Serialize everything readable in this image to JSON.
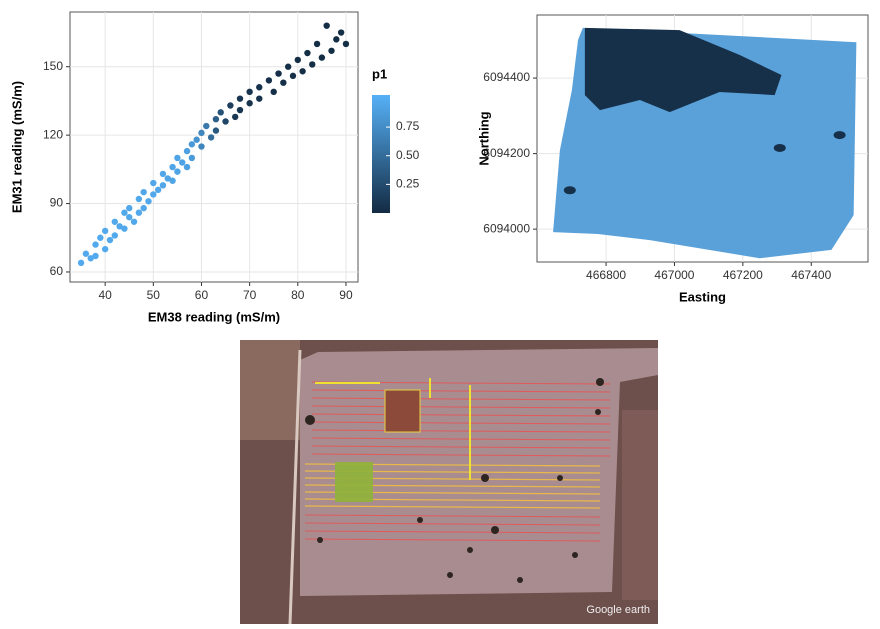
{
  "chart_data": [
    {
      "type": "scatter",
      "xlabel": "EM38 reading (mS/m)",
      "ylabel": "EM31 reading (mS/m)",
      "x": [
        35,
        36,
        37,
        38,
        38,
        39,
        40,
        40,
        41,
        42,
        42,
        43,
        44,
        44,
        45,
        45,
        46,
        47,
        47,
        48,
        48,
        49,
        50,
        50,
        51,
        52,
        52,
        53,
        54,
        54,
        55,
        55,
        56,
        57,
        57,
        58,
        58,
        59,
        60,
        60,
        61,
        62,
        63,
        63,
        64,
        65,
        66,
        67,
        68,
        68,
        70,
        70,
        72,
        72,
        74,
        75,
        76,
        77,
        78,
        79,
        80,
        81,
        82,
        83,
        84,
        85,
        86,
        87,
        88,
        89,
        90
      ],
      "y": [
        64,
        68,
        66,
        72,
        67,
        75,
        70,
        78,
        74,
        82,
        76,
        80,
        86,
        79,
        88,
        84,
        82,
        92,
        86,
        95,
        88,
        91,
        99,
        94,
        96,
        103,
        98,
        101,
        106,
        100,
        110,
        104,
        108,
        113,
        106,
        116,
        110,
        118,
        115,
        121,
        124,
        119,
        127,
        122,
        130,
        126,
        133,
        128,
        136,
        131,
        139,
        134,
        141,
        136,
        144,
        139,
        147,
        143,
        150,
        146,
        153,
        148,
        156,
        151,
        160,
        154,
        168,
        157,
        162,
        165,
        160
      ],
      "p1": [
        0.97,
        0.97,
        0.97,
        0.97,
        0.97,
        0.97,
        0.97,
        0.97,
        0.96,
        0.96,
        0.96,
        0.96,
        0.96,
        0.96,
        0.96,
        0.96,
        0.96,
        0.96,
        0.96,
        0.95,
        0.95,
        0.95,
        0.95,
        0.95,
        0.95,
        0.95,
        0.95,
        0.94,
        0.94,
        0.94,
        0.93,
        0.93,
        0.92,
        0.9,
        0.9,
        0.85,
        0.85,
        0.8,
        0.7,
        0.7,
        0.6,
        0.5,
        0.4,
        0.35,
        0.3,
        0.2,
        0.15,
        0.1,
        0.08,
        0.08,
        0.06,
        0.06,
        0.05,
        0.05,
        0.04,
        0.04,
        0.03,
        0.03,
        0.03,
        0.03,
        0.02,
        0.02,
        0.02,
        0.02,
        0.02,
        0.02,
        0.02,
        0.02,
        0.02,
        0.02,
        0.02
      ],
      "xlim": [
        32.7,
        92.5
      ],
      "ylim": [
        55.6,
        174
      ],
      "xticks": [
        40,
        50,
        60,
        70,
        80,
        90
      ],
      "yticks": [
        60,
        90,
        120,
        150
      ],
      "grid": true,
      "colorbar": {
        "title": "p1",
        "lim": [
          0,
          1.03
        ],
        "ticks": [
          0.25,
          {
            "value": 0.5,
            "label": "0.50"
          },
          0.75
        ],
        "colors": [
          "#132b43",
          "#56b1f7"
        ]
      }
    },
    {
      "type": "map",
      "xlabel": "Easting",
      "ylabel": "Northing",
      "xlim": [
        466598,
        467566
      ],
      "ylim": [
        6093913,
        6094567
      ],
      "xticks": [
        466800,
        467000,
        467200,
        467400
      ],
      "yticks": [
        6094000,
        6094200,
        6094400
      ],
      "grid": true,
      "zones": [
        {
          "color": "#5aa1d9",
          "x": [
            466732,
            467532,
            467524,
            467459,
            467249,
            466928,
            466776,
            466645,
            466665,
            466700,
            466718
          ],
          "y": [
            6094533,
            6094495,
            6094037,
            6093945,
            6093923,
            6093971,
            6093987,
            6093992,
            6094209,
            6094368,
            6094501
          ]
        },
        {
          "color": "#16304a",
          "x": [
            466738,
            467015,
            467191,
            467313,
            467293,
            467132,
            466986,
            466899,
            466782,
            466738
          ],
          "y": [
            6094533,
            6094527,
            6094461,
            6094408,
            6094355,
            6094363,
            6094310,
            6094342,
            6094315,
            6094355
          ]
        }
      ],
      "spots": {
        "color": "#16304a",
        "x": [
          466694,
          467308,
          467483
        ],
        "y": [
          6094103,
          6094215,
          6094249
        ]
      }
    }
  ],
  "image": {
    "watermark": "Google earth"
  }
}
